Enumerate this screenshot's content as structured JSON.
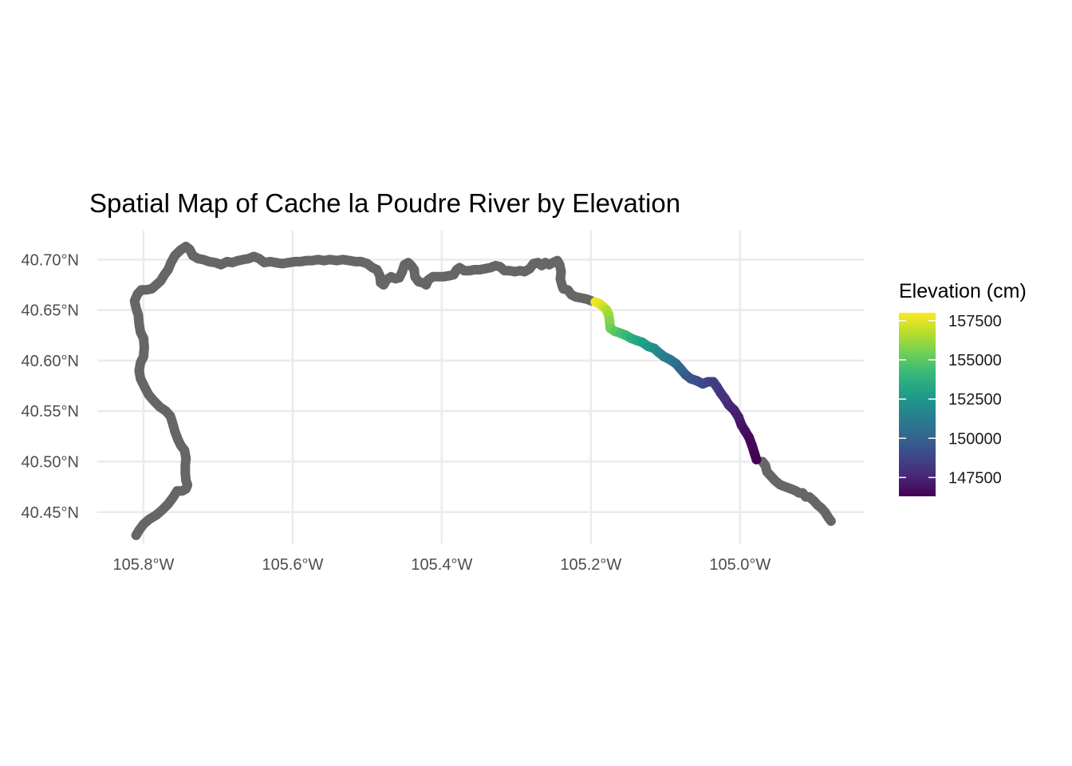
{
  "chart_data": {
    "type": "map",
    "title": "Spatial Map of Cache la Poudre River by Elevation",
    "x_ticks": [
      {
        "value": -105.8,
        "label": "105.8°W"
      },
      {
        "value": -105.6,
        "label": "105.6°W"
      },
      {
        "value": -105.4,
        "label": "105.4°W"
      },
      {
        "value": -105.2,
        "label": "105.2°W"
      },
      {
        "value": -105.0,
        "label": "105.0°W"
      }
    ],
    "y_ticks": [
      {
        "value": 40.45,
        "label": "40.45°N"
      },
      {
        "value": 40.5,
        "label": "40.50°N"
      },
      {
        "value": 40.55,
        "label": "40.55°N"
      },
      {
        "value": 40.6,
        "label": "40.60°N"
      },
      {
        "value": 40.65,
        "label": "40.65°N"
      },
      {
        "value": 40.7,
        "label": "40.70°N"
      }
    ],
    "xlim": [
      -105.862,
      -104.834
    ],
    "ylim": [
      40.4182,
      40.7287
    ],
    "grid": true,
    "boundary": {
      "name": "",
      "color": "#666666",
      "points": [
        [
          -105.81,
          40.427
        ],
        [
          -105.806,
          40.432
        ],
        [
          -105.8,
          40.438
        ],
        [
          -105.792,
          40.443
        ],
        [
          -105.783,
          40.447
        ],
        [
          -105.775,
          40.452
        ],
        [
          -105.767,
          40.458
        ],
        [
          -105.76,
          40.465
        ],
        [
          -105.755,
          40.471
        ],
        [
          -105.748,
          40.471
        ],
        [
          -105.743,
          40.473
        ],
        [
          -105.741,
          40.477
        ],
        [
          -105.743,
          40.481
        ],
        [
          -105.744,
          40.488
        ],
        [
          -105.744,
          40.496
        ],
        [
          -105.743,
          40.503
        ],
        [
          -105.745,
          40.511
        ],
        [
          -105.75,
          40.516
        ],
        [
          -105.754,
          40.522
        ],
        [
          -105.758,
          40.53
        ],
        [
          -105.761,
          40.538
        ],
        [
          -105.764,
          40.545
        ],
        [
          -105.77,
          40.55
        ],
        [
          -105.778,
          40.554
        ],
        [
          -105.786,
          40.56
        ],
        [
          -105.793,
          40.566
        ],
        [
          -105.798,
          40.573
        ],
        [
          -105.804,
          40.582
        ],
        [
          -105.806,
          40.59
        ],
        [
          -105.804,
          40.598
        ],
        [
          -105.8,
          40.604
        ],
        [
          -105.799,
          40.613
        ],
        [
          -105.8,
          40.622
        ],
        [
          -105.804,
          40.628
        ],
        [
          -105.806,
          40.636
        ],
        [
          -105.807,
          40.645
        ],
        [
          -105.81,
          40.652
        ],
        [
          -105.812,
          40.659
        ],
        [
          -105.808,
          40.666
        ],
        [
          -105.803,
          40.67
        ],
        [
          -105.796,
          40.67
        ],
        [
          -105.789,
          40.671
        ],
        [
          -105.783,
          40.675
        ],
        [
          -105.777,
          40.679
        ],
        [
          -105.772,
          40.685
        ],
        [
          -105.767,
          40.69
        ],
        [
          -105.763,
          40.697
        ],
        [
          -105.758,
          40.704
        ],
        [
          -105.751,
          40.709
        ],
        [
          -105.743,
          40.713
        ],
        [
          -105.738,
          40.71
        ],
        [
          -105.734,
          40.704
        ],
        [
          -105.727,
          40.701
        ],
        [
          -105.72,
          40.7
        ],
        [
          -105.712,
          40.698
        ],
        [
          -105.704,
          40.697
        ],
        [
          -105.696,
          40.695
        ],
        [
          -105.688,
          40.698
        ],
        [
          -105.681,
          40.697
        ],
        [
          -105.673,
          40.699
        ],
        [
          -105.666,
          40.7
        ],
        [
          -105.659,
          40.701
        ],
        [
          -105.652,
          40.703
        ],
        [
          -105.645,
          40.701
        ],
        [
          -105.638,
          40.697
        ],
        [
          -105.63,
          40.698
        ],
        [
          -105.623,
          40.697
        ],
        [
          -105.614,
          40.696
        ],
        [
          -105.605,
          40.697
        ],
        [
          -105.597,
          40.698
        ],
        [
          -105.589,
          40.698
        ],
        [
          -105.582,
          40.699
        ],
        [
          -105.574,
          40.699
        ],
        [
          -105.566,
          40.7
        ],
        [
          -105.558,
          40.699
        ],
        [
          -105.55,
          40.7
        ],
        [
          -105.541,
          40.699
        ],
        [
          -105.533,
          40.7
        ],
        [
          -105.524,
          40.699
        ],
        [
          -105.516,
          40.698
        ],
        [
          -105.508,
          40.698
        ],
        [
          -105.5,
          40.696
        ],
        [
          -105.493,
          40.692
        ],
        [
          -105.487,
          40.69
        ],
        [
          -105.483,
          40.684
        ],
        [
          -105.482,
          40.677
        ],
        [
          -105.478,
          40.675
        ],
        [
          -105.474,
          40.68
        ],
        [
          -105.468,
          40.683
        ],
        [
          -105.462,
          40.681
        ],
        [
          -105.457,
          40.682
        ],
        [
          -105.453,
          40.688
        ],
        [
          -105.45,
          40.695
        ],
        [
          -105.445,
          40.697
        ],
        [
          -105.441,
          40.694
        ],
        [
          -105.437,
          40.69
        ],
        [
          -105.436,
          40.683
        ],
        [
          -105.431,
          40.678
        ],
        [
          -105.425,
          40.677
        ],
        [
          -105.421,
          40.675
        ],
        [
          -105.418,
          40.68
        ],
        [
          -105.412,
          40.683
        ],
        [
          -105.405,
          40.683
        ],
        [
          -105.398,
          40.683
        ],
        [
          -105.39,
          40.684
        ],
        [
          -105.384,
          40.685
        ],
        [
          -105.38,
          40.69
        ],
        [
          -105.376,
          40.692
        ],
        [
          -105.37,
          40.689
        ],
        [
          -105.363,
          40.689
        ],
        [
          -105.356,
          40.69
        ],
        [
          -105.349,
          40.69
        ],
        [
          -105.342,
          40.691
        ],
        [
          -105.335,
          40.692
        ],
        [
          -105.328,
          40.694
        ],
        [
          -105.322,
          40.693
        ],
        [
          -105.316,
          40.689
        ],
        [
          -105.309,
          40.689
        ],
        [
          -105.302,
          40.688
        ],
        [
          -105.295,
          40.689
        ],
        [
          -105.289,
          40.688
        ],
        [
          -105.282,
          40.691
        ],
        [
          -105.277,
          40.696
        ],
        [
          -105.271,
          40.697
        ],
        [
          -105.266,
          40.694
        ],
        [
          -105.261,
          40.697
        ],
        [
          -105.256,
          40.695
        ],
        [
          -105.251,
          40.697
        ],
        [
          -105.245,
          40.699
        ],
        [
          -105.242,
          40.695
        ],
        [
          -105.24,
          40.688
        ],
        [
          -105.241,
          40.681
        ],
        [
          -105.239,
          40.675
        ],
        [
          -105.237,
          40.671
        ],
        [
          -105.231,
          40.67
        ],
        [
          -105.226,
          40.665
        ],
        [
          -105.22,
          40.663
        ],
        [
          -105.213,
          40.662
        ],
        [
          -105.206,
          40.661
        ],
        [
          -105.199,
          40.659
        ]
      ],
      "points_tail": [
        [
          -104.97,
          40.5
        ],
        [
          -104.966,
          40.496
        ],
        [
          -104.964,
          40.49
        ],
        [
          -104.959,
          40.486
        ],
        [
          -104.953,
          40.481
        ],
        [
          -104.946,
          40.477
        ],
        [
          -104.939,
          40.475
        ],
        [
          -104.932,
          40.473
        ],
        [
          -104.925,
          40.471
        ],
        [
          -104.921,
          40.469
        ],
        [
          -104.916,
          40.469
        ],
        [
          -104.912,
          40.465
        ],
        [
          -104.907,
          40.465
        ],
        [
          -104.901,
          40.461
        ],
        [
          -104.896,
          40.457
        ],
        [
          -104.891,
          40.454
        ],
        [
          -104.886,
          40.45
        ],
        [
          -104.882,
          40.445
        ],
        [
          -104.878,
          40.441
        ]
      ]
    },
    "series": [
      {
        "name": "Elevation (cm)",
        "points": [
          {
            "lon": -105.194,
            "lat": 40.658,
            "elevation": 157800
          },
          {
            "lon": -105.188,
            "lat": 40.656,
            "elevation": 157500
          },
          {
            "lon": -105.183,
            "lat": 40.653,
            "elevation": 157100
          },
          {
            "lon": -105.179,
            "lat": 40.65,
            "elevation": 156600
          },
          {
            "lon": -105.176,
            "lat": 40.645,
            "elevation": 156200
          },
          {
            "lon": -105.175,
            "lat": 40.639,
            "elevation": 155800
          },
          {
            "lon": -105.174,
            "lat": 40.632,
            "elevation": 155400
          },
          {
            "lon": -105.168,
            "lat": 40.629,
            "elevation": 155000
          },
          {
            "lon": -105.16,
            "lat": 40.627,
            "elevation": 154500
          },
          {
            "lon": -105.153,
            "lat": 40.625,
            "elevation": 154100
          },
          {
            "lon": -105.146,
            "lat": 40.622,
            "elevation": 153700
          },
          {
            "lon": -105.139,
            "lat": 40.62,
            "elevation": 153300
          },
          {
            "lon": -105.131,
            "lat": 40.618,
            "elevation": 152900
          },
          {
            "lon": -105.123,
            "lat": 40.614,
            "elevation": 152500
          },
          {
            "lon": -105.115,
            "lat": 40.612,
            "elevation": 152100
          },
          {
            "lon": -105.109,
            "lat": 40.608,
            "elevation": 151700
          },
          {
            "lon": -105.102,
            "lat": 40.604,
            "elevation": 151300
          },
          {
            "lon": -105.094,
            "lat": 40.601,
            "elevation": 150900
          },
          {
            "lon": -105.086,
            "lat": 40.597,
            "elevation": 150500
          },
          {
            "lon": -105.08,
            "lat": 40.592,
            "elevation": 150100
          },
          {
            "lon": -105.073,
            "lat": 40.586,
            "elevation": 149700
          },
          {
            "lon": -105.066,
            "lat": 40.582,
            "elevation": 149400
          },
          {
            "lon": -105.058,
            "lat": 40.58,
            "elevation": 149100
          },
          {
            "lon": -105.05,
            "lat": 40.577,
            "elevation": 148900
          },
          {
            "lon": -105.043,
            "lat": 40.579,
            "elevation": 148700
          },
          {
            "lon": -105.036,
            "lat": 40.579,
            "elevation": 148500
          },
          {
            "lon": -105.031,
            "lat": 40.574,
            "elevation": 148300
          },
          {
            "lon": -105.026,
            "lat": 40.568,
            "elevation": 148100
          },
          {
            "lon": -105.02,
            "lat": 40.562,
            "elevation": 147900
          },
          {
            "lon": -105.015,
            "lat": 40.556,
            "elevation": 147600
          },
          {
            "lon": -105.008,
            "lat": 40.551,
            "elevation": 147400
          },
          {
            "lon": -105.002,
            "lat": 40.544,
            "elevation": 147200
          },
          {
            "lon": -104.998,
            "lat": 40.536,
            "elevation": 147000
          },
          {
            "lon": -104.993,
            "lat": 40.53,
            "elevation": 146800
          },
          {
            "lon": -104.988,
            "lat": 40.524,
            "elevation": 146600
          },
          {
            "lon": -104.984,
            "lat": 40.516,
            "elevation": 146500
          },
          {
            "lon": -104.981,
            "lat": 40.509,
            "elevation": 146400
          },
          {
            "lon": -104.978,
            "lat": 40.502,
            "elevation": 146300
          }
        ]
      }
    ],
    "legend": {
      "title": "Elevation (cm)",
      "placement": "right",
      "range": [
        146300,
        158000
      ],
      "breaks": [
        {
          "value": 157500,
          "label": "157500"
        },
        {
          "value": 155000,
          "label": "155000"
        },
        {
          "value": 152500,
          "label": "152500"
        },
        {
          "value": 150000,
          "label": "150000"
        },
        {
          "value": 147500,
          "label": "147500"
        }
      ],
      "colors": [
        "#440154",
        "#482878",
        "#3e4989",
        "#31688e",
        "#26828e",
        "#1f9e89",
        "#35b779",
        "#6ece58",
        "#b5de2b",
        "#fde725"
      ]
    }
  }
}
